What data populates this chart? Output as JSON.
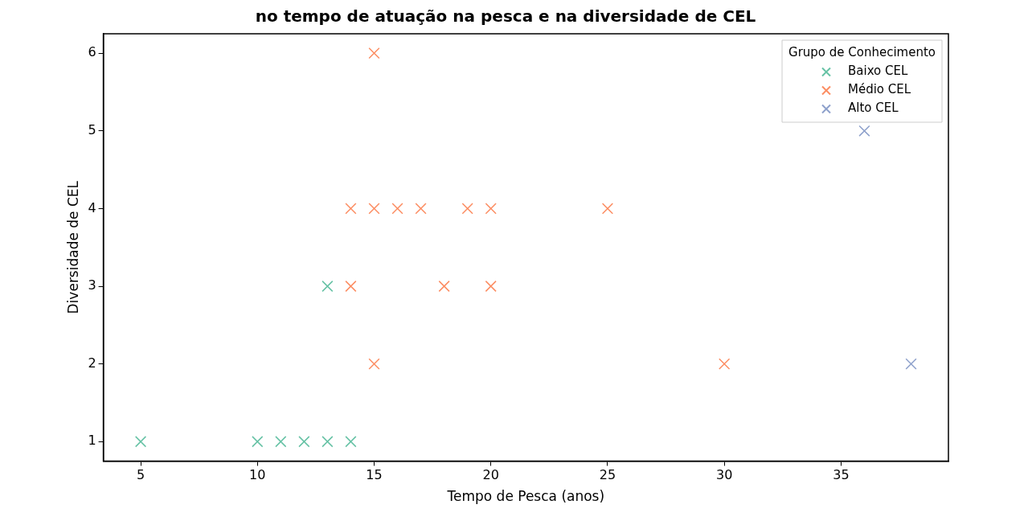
{
  "chart_data": {
    "type": "scatter",
    "title": "no tempo de atuação na pesca e na diversidade de CEL",
    "xlabel": "Tempo de Pesca (anos)",
    "ylabel": "Diversidade de CEL",
    "legend_title": "Grupo de Conhecimento",
    "legend": "top right",
    "marker": "cross",
    "grid": false,
    "xlim": [
      3.4,
      39.6
    ],
    "xticks": [
      5,
      10,
      15,
      20,
      25,
      30,
      35
    ],
    "ylim": [
      0.75,
      6.25
    ],
    "yticks": [
      1,
      2,
      3,
      4,
      5,
      6
    ],
    "series": [
      {
        "name": "Baixo CEL",
        "color": "#66c2a5",
        "x": [
          5,
          10,
          11,
          12,
          13,
          14,
          13
        ],
        "values": [
          1,
          1,
          1,
          1,
          1,
          1,
          3
        ]
      },
      {
        "name": "Médio CEL",
        "color": "#fc8d62",
        "x": [
          15,
          14,
          15,
          16,
          17,
          19,
          20,
          25,
          14,
          18,
          20,
          15,
          30
        ],
        "values": [
          6,
          4,
          4,
          4,
          4,
          4,
          4,
          4,
          3,
          3,
          3,
          2,
          2
        ]
      },
      {
        "name": "Alto CEL",
        "color": "#8da0cb",
        "x": [
          36,
          38
        ],
        "values": [
          5,
          2
        ]
      }
    ]
  }
}
